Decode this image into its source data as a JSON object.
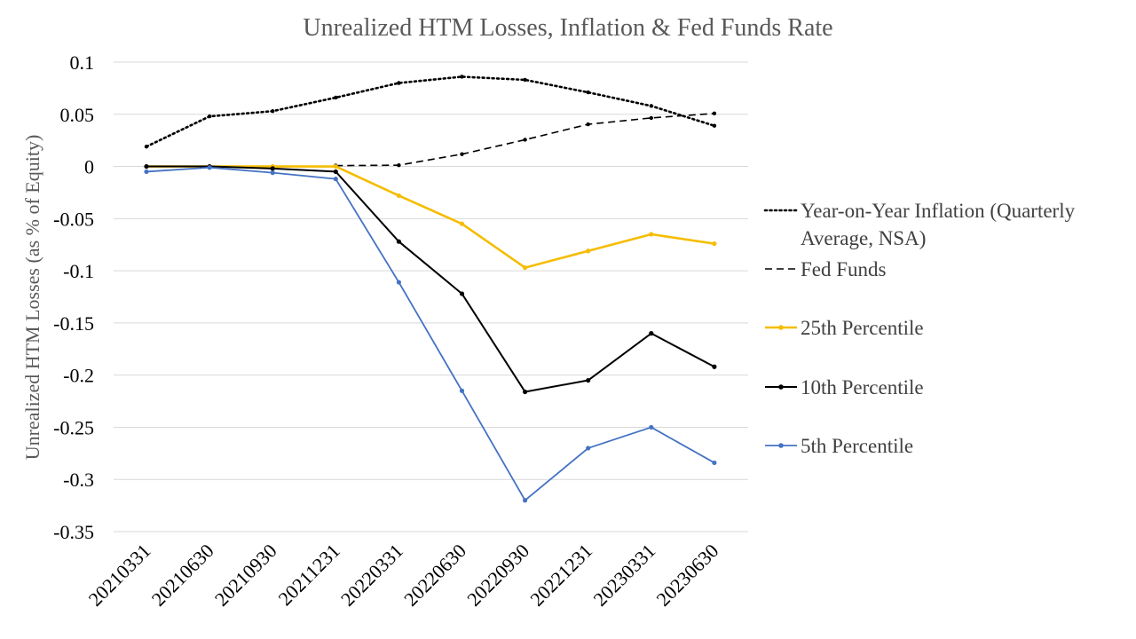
{
  "chart_data": {
    "type": "line",
    "title": "Unrealized HTM Losses,  Inflation & Fed Funds Rate",
    "xlabel": "",
    "ylabel": "Unrealized HTM Losses (as % of Equity)",
    "ylim": [
      -0.35,
      0.1
    ],
    "yticks": [
      0.1,
      0.05,
      0,
      -0.05,
      -0.1,
      -0.15,
      -0.2,
      -0.25,
      -0.3,
      -0.35
    ],
    "ytick_labels": [
      "0.1",
      "0.05",
      "0",
      "-0.05",
      "-0.1",
      "-0.15",
      "-0.2",
      "-0.25",
      "-0.3",
      "-0.35"
    ],
    "grid": true,
    "legend_position": "right",
    "categories": [
      "20210331",
      "20210630",
      "20210930",
      "20211231",
      "20220331",
      "20220630",
      "20220930",
      "20221231",
      "20230331",
      "20230630"
    ],
    "series": [
      {
        "name": "Year-on-Year Inflation (Quarterly Average, NSA)",
        "legend_lines": [
          "Year-on-Year Inflation (Quarterly",
          "Average, NSA)"
        ],
        "color": "#000000",
        "style": "dotted",
        "values": [
          0.019,
          0.048,
          0.053,
          0.066,
          0.08,
          0.086,
          0.083,
          0.071,
          0.058,
          0.039
        ]
      },
      {
        "name": "Fed Funds",
        "legend_lines": [
          "Fed Funds"
        ],
        "color": "#000000",
        "style": "dashed",
        "values": [
          null,
          null,
          null,
          0.0008,
          0.0012,
          0.0118,
          0.0256,
          0.0404,
          0.0465,
          0.0508
        ]
      },
      {
        "name": "25th Percentile",
        "legend_lines": [
          "25th Percentile"
        ],
        "color": "#f5bd00",
        "style": "solid",
        "values": [
          0.0,
          0.0,
          0.0,
          0.0,
          -0.028,
          -0.055,
          -0.097,
          -0.081,
          -0.065,
          -0.074
        ]
      },
      {
        "name": "10th Percentile",
        "legend_lines": [
          "10th Percentile"
        ],
        "color": "#000000",
        "style": "solid",
        "values": [
          0.0,
          0.0,
          -0.002,
          -0.005,
          -0.072,
          -0.122,
          -0.216,
          -0.205,
          -0.16,
          -0.192
        ]
      },
      {
        "name": "5th Percentile",
        "legend_lines": [
          "5th Percentile"
        ],
        "color": "#4472c4",
        "style": "solid",
        "values": [
          -0.005,
          -0.001,
          -0.006,
          -0.012,
          -0.111,
          -0.215,
          -0.32,
          -0.27,
          -0.25,
          -0.284
        ]
      }
    ]
  }
}
